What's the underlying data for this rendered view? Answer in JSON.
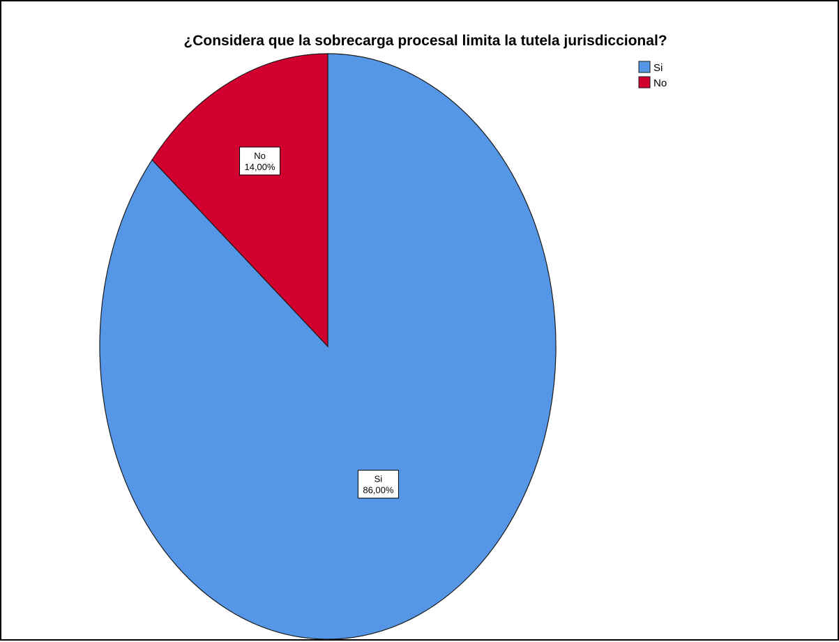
{
  "chart_data": {
    "type": "pie",
    "title": "¿Considera que la sobrecarga procesal limita la tutela jurisdiccional?",
    "categories": [
      "Si",
      "No"
    ],
    "values": [
      86.0,
      14.0
    ],
    "value_unit": "%",
    "data_labels": [
      {
        "category": "Si",
        "percent_text": "86,00%"
      },
      {
        "category": "No",
        "percent_text": "14,00%"
      }
    ],
    "colors": {
      "Si": "#5596e6",
      "No": "#d2002f"
    },
    "start_angle": "12 o'clock",
    "direction": "clockwise",
    "legend": {
      "position": "top-right",
      "entries": [
        "Si",
        "No"
      ]
    }
  }
}
